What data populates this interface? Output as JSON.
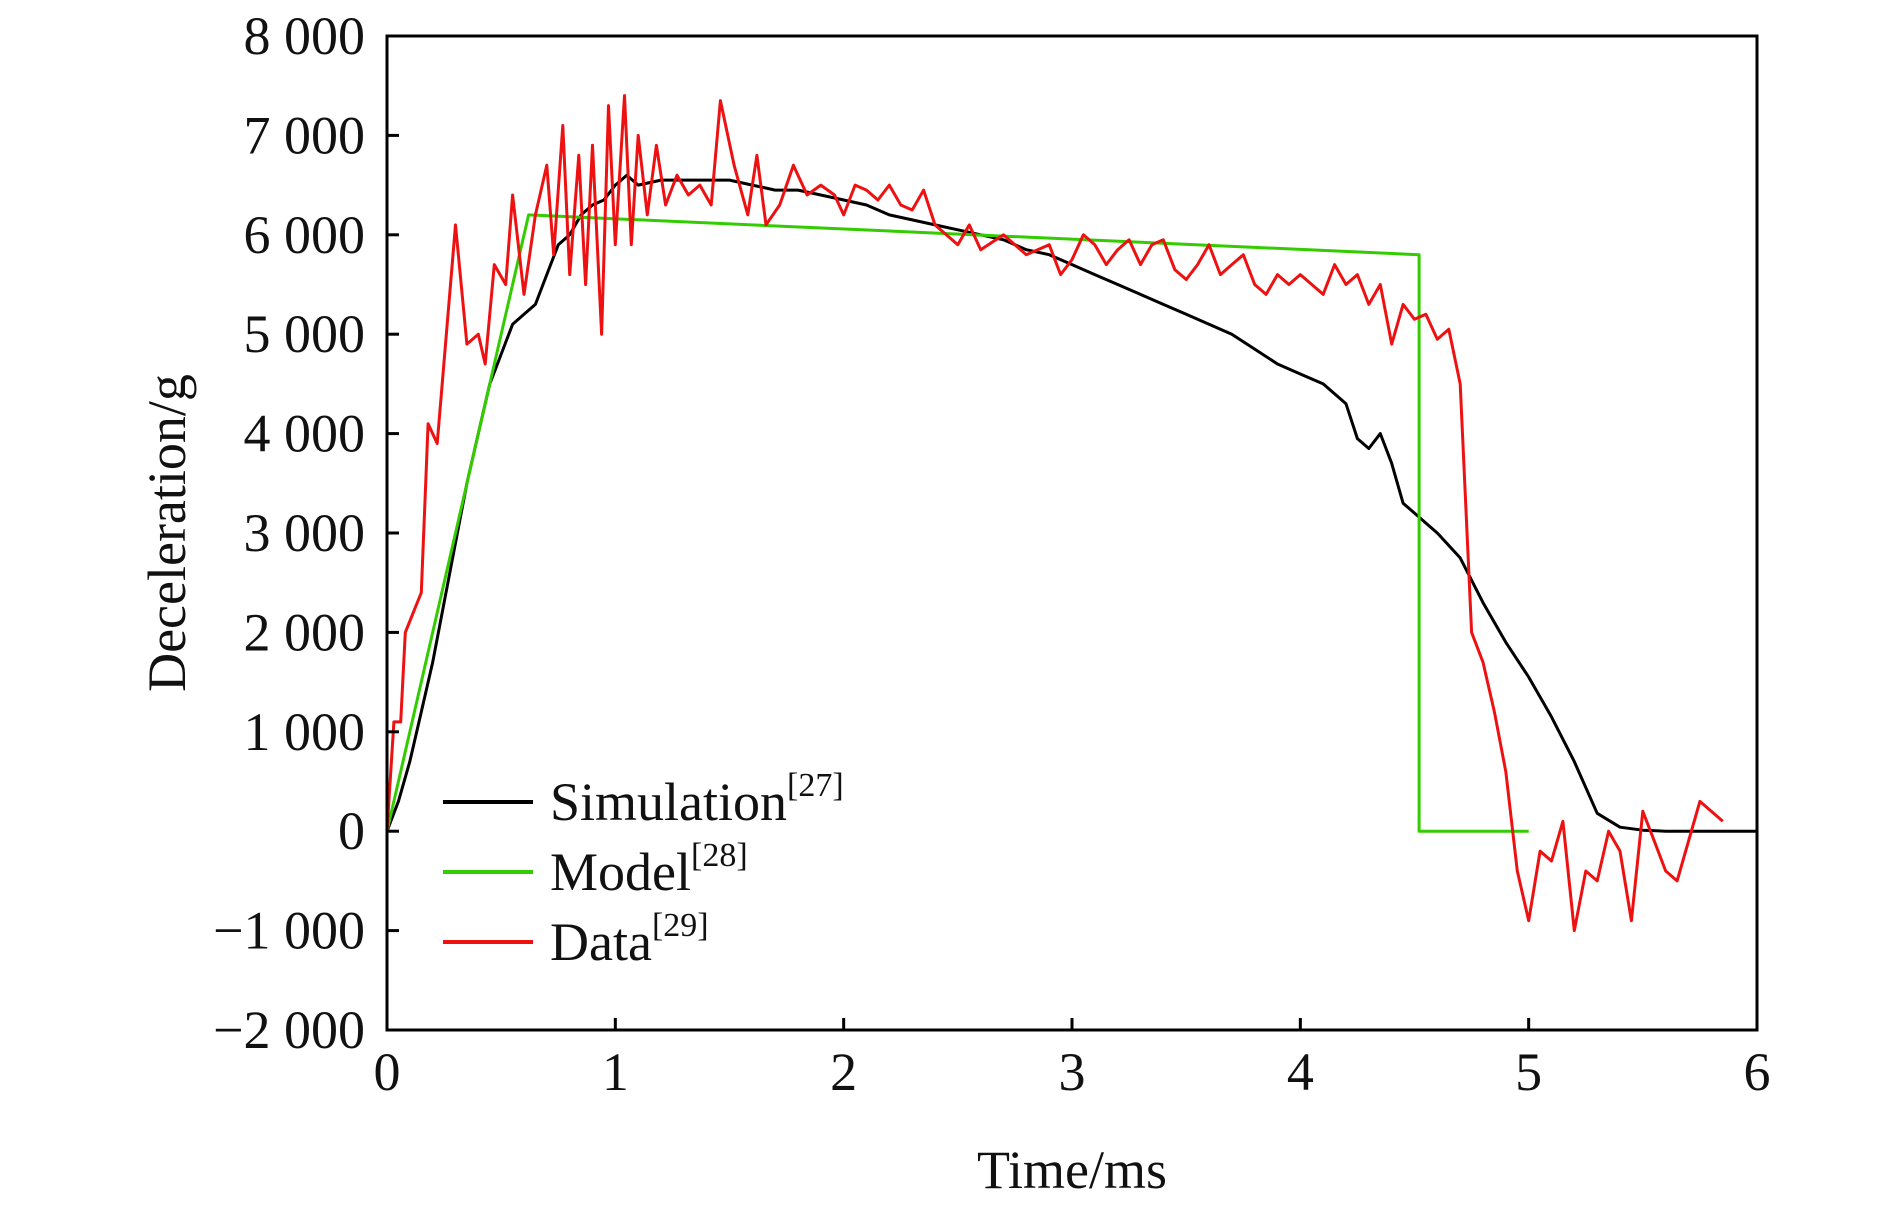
{
  "chart_data": {
    "type": "line",
    "xlabel": "Time/ms",
    "ylabel": "Deceleration/g",
    "xlim": [
      0,
      6
    ],
    "ylim": [
      -2000,
      8000
    ],
    "x_ticks": [
      0,
      1,
      2,
      3,
      4,
      5,
      6
    ],
    "x_tick_labels": [
      "0",
      "1",
      "2",
      "3",
      "4",
      "5",
      "6"
    ],
    "y_ticks": [
      -2000,
      -1000,
      0,
      1000,
      2000,
      3000,
      4000,
      5000,
      6000,
      7000,
      8000
    ],
    "y_tick_labels": [
      "−2 000",
      "−1 000",
      "0",
      "1 000",
      "2 000",
      "3 000",
      "4 000",
      "5 000",
      "6 000",
      "7 000",
      "8 000"
    ],
    "grid": false,
    "legend_position": "lower-left",
    "series": [
      {
        "name": "Simulation",
        "ref": "[27]",
        "color": "#000000",
        "points": [
          [
            0,
            0
          ],
          [
            0.05,
            300
          ],
          [
            0.1,
            700
          ],
          [
            0.15,
            1200
          ],
          [
            0.2,
            1700
          ],
          [
            0.25,
            2300
          ],
          [
            0.3,
            2900
          ],
          [
            0.35,
            3500
          ],
          [
            0.4,
            4000
          ],
          [
            0.45,
            4500
          ],
          [
            0.5,
            4800
          ],
          [
            0.55,
            5100
          ],
          [
            0.6,
            5200
          ],
          [
            0.65,
            5300
          ],
          [
            0.7,
            5600
          ],
          [
            0.75,
            5900
          ],
          [
            0.8,
            6000
          ],
          [
            0.85,
            6200
          ],
          [
            0.9,
            6300
          ],
          [
            0.95,
            6350
          ],
          [
            1.0,
            6500
          ],
          [
            1.05,
            6600
          ],
          [
            1.1,
            6500
          ],
          [
            1.2,
            6550
          ],
          [
            1.3,
            6550
          ],
          [
            1.4,
            6550
          ],
          [
            1.5,
            6550
          ],
          [
            1.6,
            6500
          ],
          [
            1.7,
            6450
          ],
          [
            1.8,
            6450
          ],
          [
            1.9,
            6400
          ],
          [
            2.0,
            6350
          ],
          [
            2.1,
            6300
          ],
          [
            2.2,
            6200
          ],
          [
            2.3,
            6150
          ],
          [
            2.4,
            6100
          ],
          [
            2.5,
            6050
          ],
          [
            2.6,
            6000
          ],
          [
            2.7,
            5950
          ],
          [
            2.8,
            5850
          ],
          [
            2.9,
            5800
          ],
          [
            3.0,
            5700
          ],
          [
            3.1,
            5600
          ],
          [
            3.2,
            5500
          ],
          [
            3.3,
            5400
          ],
          [
            3.4,
            5300
          ],
          [
            3.5,
            5200
          ],
          [
            3.6,
            5100
          ],
          [
            3.7,
            5000
          ],
          [
            3.8,
            4850
          ],
          [
            3.9,
            4700
          ],
          [
            4.0,
            4600
          ],
          [
            4.1,
            4500
          ],
          [
            4.2,
            4300
          ],
          [
            4.25,
            3950
          ],
          [
            4.3,
            3850
          ],
          [
            4.35,
            4000
          ],
          [
            4.4,
            3700
          ],
          [
            4.45,
            3300
          ],
          [
            4.5,
            3200
          ],
          [
            4.55,
            3100
          ],
          [
            4.6,
            3000
          ],
          [
            4.7,
            2750
          ],
          [
            4.8,
            2300
          ],
          [
            4.9,
            1900
          ],
          [
            5.0,
            1550
          ],
          [
            5.1,
            1150
          ],
          [
            5.2,
            700
          ],
          [
            5.3,
            180
          ],
          [
            5.4,
            40
          ],
          [
            5.5,
            10
          ],
          [
            5.6,
            0
          ],
          [
            5.8,
            0
          ],
          [
            6.0,
            0
          ]
        ]
      },
      {
        "name": "Model",
        "ref": "[28]",
        "color": "#33cc00",
        "points": [
          [
            0,
            0
          ],
          [
            0.62,
            6200
          ],
          [
            4.52,
            5800
          ],
          [
            4.52,
            0
          ],
          [
            5.0,
            0
          ]
        ]
      },
      {
        "name": "Data",
        "ref": "[29]",
        "color": "#ee1111",
        "points": [
          [
            0,
            0
          ],
          [
            0.03,
            1100
          ],
          [
            0.06,
            1100
          ],
          [
            0.08,
            2000
          ],
          [
            0.15,
            2400
          ],
          [
            0.18,
            4100
          ],
          [
            0.22,
            3900
          ],
          [
            0.3,
            6100
          ],
          [
            0.35,
            4900
          ],
          [
            0.4,
            5000
          ],
          [
            0.43,
            4700
          ],
          [
            0.47,
            5700
          ],
          [
            0.52,
            5500
          ],
          [
            0.55,
            6400
          ],
          [
            0.6,
            5400
          ],
          [
            0.65,
            6200
          ],
          [
            0.7,
            6700
          ],
          [
            0.73,
            5800
          ],
          [
            0.77,
            7100
          ],
          [
            0.8,
            5600
          ],
          [
            0.84,
            6800
          ],
          [
            0.87,
            5500
          ],
          [
            0.9,
            6900
          ],
          [
            0.94,
            5000
          ],
          [
            0.97,
            7300
          ],
          [
            1.0,
            5900
          ],
          [
            1.04,
            7400
          ],
          [
            1.07,
            5900
          ],
          [
            1.1,
            7000
          ],
          [
            1.14,
            6200
          ],
          [
            1.18,
            6900
          ],
          [
            1.22,
            6300
          ],
          [
            1.27,
            6600
          ],
          [
            1.32,
            6400
          ],
          [
            1.37,
            6500
          ],
          [
            1.42,
            6300
          ],
          [
            1.46,
            7350
          ],
          [
            1.52,
            6700
          ],
          [
            1.58,
            6200
          ],
          [
            1.62,
            6800
          ],
          [
            1.66,
            6100
          ],
          [
            1.72,
            6300
          ],
          [
            1.78,
            6700
          ],
          [
            1.84,
            6400
          ],
          [
            1.9,
            6500
          ],
          [
            1.96,
            6400
          ],
          [
            2.0,
            6200
          ],
          [
            2.05,
            6500
          ],
          [
            2.1,
            6450
          ],
          [
            2.15,
            6350
          ],
          [
            2.2,
            6500
          ],
          [
            2.25,
            6300
          ],
          [
            2.3,
            6250
          ],
          [
            2.35,
            6450
          ],
          [
            2.4,
            6100
          ],
          [
            2.5,
            5900
          ],
          [
            2.55,
            6100
          ],
          [
            2.6,
            5850
          ],
          [
            2.7,
            6000
          ],
          [
            2.8,
            5800
          ],
          [
            2.9,
            5900
          ],
          [
            2.95,
            5600
          ],
          [
            3.0,
            5750
          ],
          [
            3.05,
            6000
          ],
          [
            3.1,
            5900
          ],
          [
            3.15,
            5700
          ],
          [
            3.2,
            5850
          ],
          [
            3.25,
            5950
          ],
          [
            3.3,
            5700
          ],
          [
            3.35,
            5900
          ],
          [
            3.4,
            5950
          ],
          [
            3.45,
            5650
          ],
          [
            3.5,
            5550
          ],
          [
            3.55,
            5700
          ],
          [
            3.6,
            5900
          ],
          [
            3.65,
            5600
          ],
          [
            3.7,
            5700
          ],
          [
            3.75,
            5800
          ],
          [
            3.8,
            5500
          ],
          [
            3.85,
            5400
          ],
          [
            3.9,
            5600
          ],
          [
            3.95,
            5500
          ],
          [
            4.0,
            5600
          ],
          [
            4.05,
            5500
          ],
          [
            4.1,
            5400
          ],
          [
            4.15,
            5700
          ],
          [
            4.2,
            5500
          ],
          [
            4.25,
            5600
          ],
          [
            4.3,
            5300
          ],
          [
            4.35,
            5500
          ],
          [
            4.4,
            4900
          ],
          [
            4.45,
            5300
          ],
          [
            4.5,
            5150
          ],
          [
            4.55,
            5200
          ],
          [
            4.6,
            4950
          ],
          [
            4.65,
            5050
          ],
          [
            4.7,
            4500
          ],
          [
            4.75,
            2000
          ],
          [
            4.8,
            1700
          ],
          [
            4.85,
            1200
          ],
          [
            4.9,
            600
          ],
          [
            4.95,
            -400
          ],
          [
            5.0,
            -900
          ],
          [
            5.05,
            -200
          ],
          [
            5.1,
            -300
          ],
          [
            5.15,
            100
          ],
          [
            5.2,
            -1000
          ],
          [
            5.25,
            -400
          ],
          [
            5.3,
            -500
          ],
          [
            5.35,
            0
          ],
          [
            5.4,
            -200
          ],
          [
            5.45,
            -900
          ],
          [
            5.5,
            200
          ],
          [
            5.55,
            -100
          ],
          [
            5.6,
            -400
          ],
          [
            5.65,
            -500
          ],
          [
            5.75,
            300
          ],
          [
            5.85,
            100
          ]
        ]
      }
    ]
  }
}
